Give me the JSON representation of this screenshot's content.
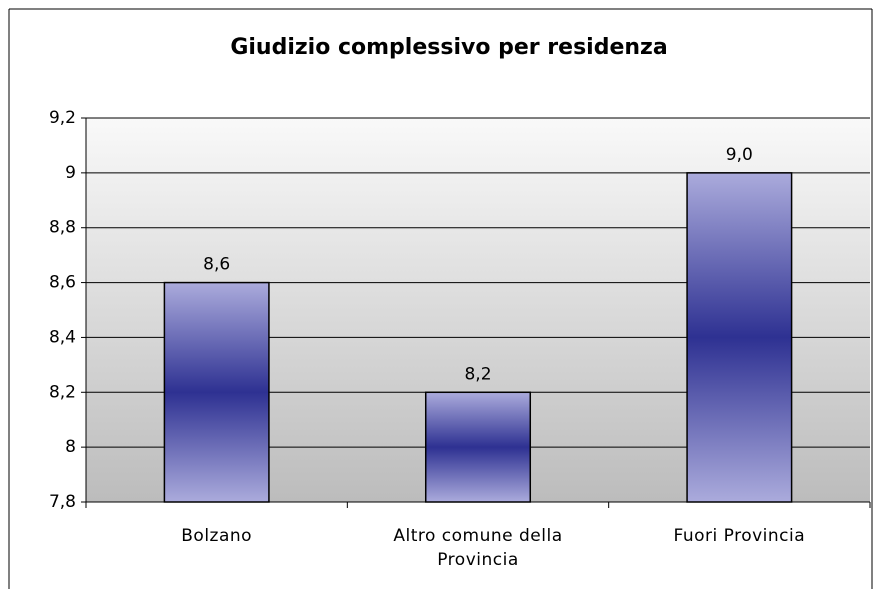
{
  "chart_data": {
    "type": "bar",
    "title": "Giudizio complessivo per residenza",
    "categories": [
      "Bolzano",
      "Altro comune della Provincia",
      "Fuori Provincia"
    ],
    "values": [
      8.6,
      8.2,
      9.0
    ],
    "value_labels": [
      "8,6",
      "8,2",
      "9,0"
    ],
    "ylim": [
      7.8,
      9.2
    ],
    "yticks": [
      {
        "value": 7.8,
        "label": "7,8"
      },
      8,
      {
        "value": 8.2,
        "label": "8,2"
      },
      {
        "value": 8.4,
        "label": "8,4"
      },
      {
        "value": 8.6,
        "label": "8,6"
      },
      {
        "value": 8.8,
        "label": "8,8"
      },
      9,
      {
        "value": 9.2,
        "label": "9,2"
      }
    ],
    "grid": true,
    "color": "#2e3192"
  }
}
